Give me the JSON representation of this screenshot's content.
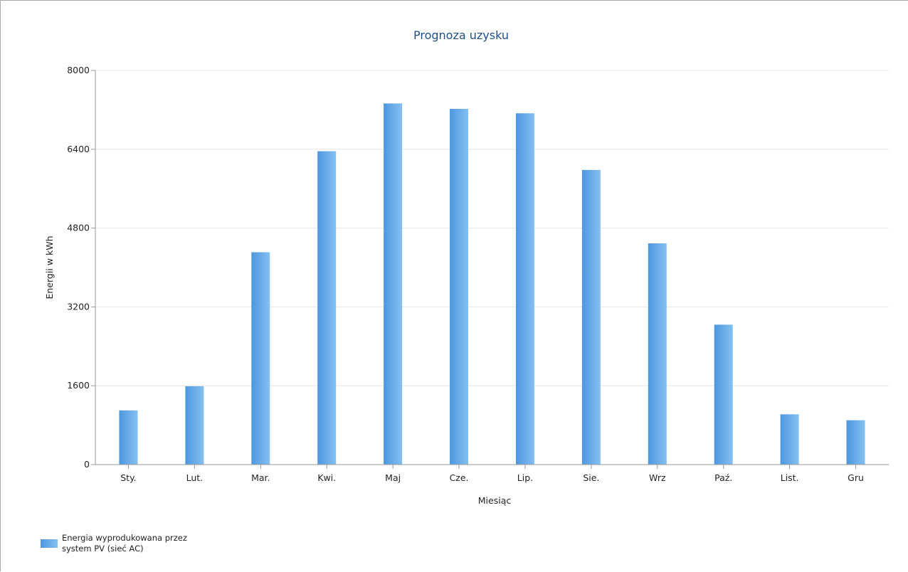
{
  "chart_data": {
    "type": "bar",
    "title": "Prognoza uzysku",
    "xlabel": "Miesiąc",
    "ylabel": "Energii w kWh",
    "categories": [
      "Sty.",
      "Lut.",
      "Mar.",
      "Kwi.",
      "Maj",
      "Cze.",
      "Lip.",
      "Sie.",
      "Wrz",
      "Paź.",
      "List.",
      "Gru"
    ],
    "series": [
      {
        "name": "Energia wyprodukowana przez system PV (sieć AC)",
        "legend_lines": [
          "Energia wyprodukowana przez",
          "system PV (sieć AC)"
        ],
        "values": [
          1100,
          1590,
          4310,
          6360,
          7330,
          7220,
          7130,
          5980,
          4490,
          2840,
          1020,
          900
        ]
      }
    ],
    "ylim": [
      0,
      8000
    ],
    "yticks": [
      0,
      1600,
      3200,
      4800,
      6400,
      8000
    ],
    "grid": true,
    "legend_position": "bottom-left",
    "colors": {
      "bar_left": "#4d97de",
      "bar_right": "#85c0f2",
      "title": "#1e4f86",
      "grid": "#e6e6e6",
      "axis": "#9a9a9a"
    }
  }
}
